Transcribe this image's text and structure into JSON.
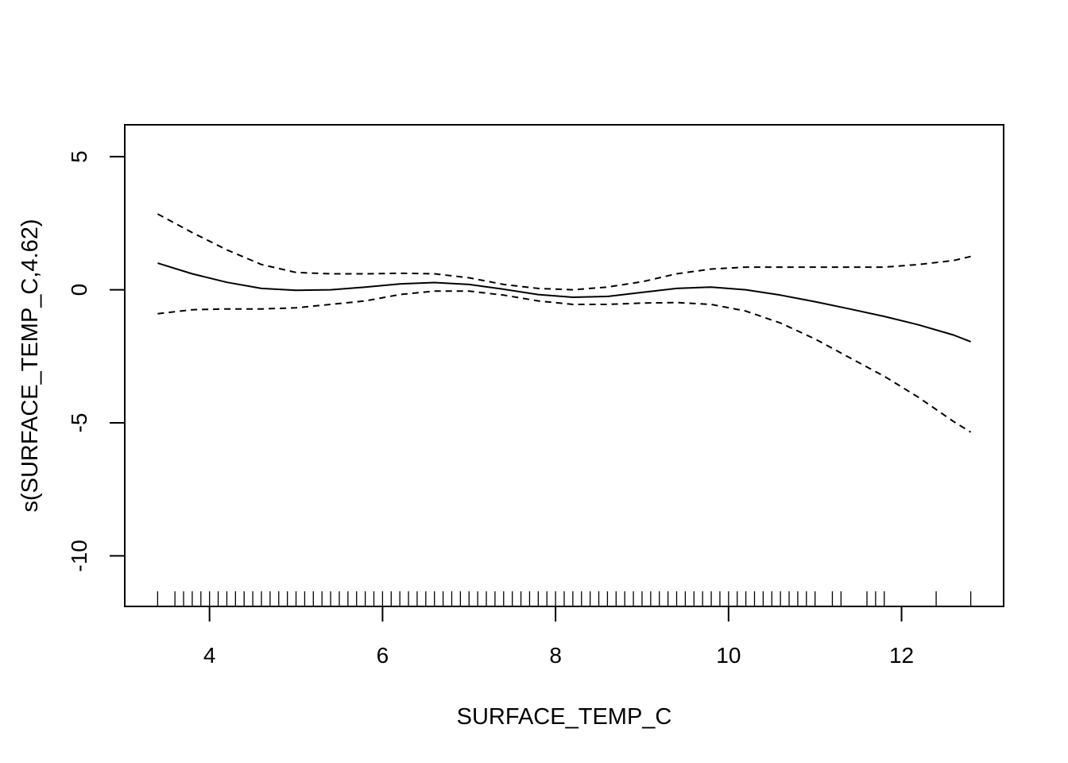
{
  "chart_data": {
    "type": "line",
    "title": "",
    "xlabel": "SURFACE_TEMP_C",
    "ylabel": "s(SURFACE_TEMP_C,4.62)",
    "xlim": [
      3.02,
      13.18
    ],
    "ylim": [
      -11.9,
      6.2
    ],
    "x_ticks": [
      4,
      6,
      8,
      10,
      12
    ],
    "x_tick_labels": [
      "4",
      "6",
      "8",
      "10",
      "12"
    ],
    "y_ticks": [
      5,
      0,
      -5,
      -10
    ],
    "y_tick_labels": [
      "5",
      "0",
      "-5",
      "-10"
    ],
    "grid": false,
    "legend": "none",
    "x": [
      3.4,
      3.8,
      4.2,
      4.6,
      5.0,
      5.4,
      5.8,
      6.2,
      6.6,
      7.0,
      7.4,
      7.8,
      8.2,
      8.6,
      9.0,
      9.4,
      9.8,
      10.2,
      10.6,
      11.0,
      11.4,
      11.8,
      12.2,
      12.6,
      12.8
    ],
    "series": [
      {
        "style": "solid",
        "values": [
          1.0,
          0.6,
          0.28,
          0.05,
          -0.02,
          0.0,
          0.1,
          0.22,
          0.27,
          0.2,
          0.02,
          -0.18,
          -0.28,
          -0.25,
          -0.1,
          0.05,
          0.1,
          0.0,
          -0.2,
          -0.45,
          -0.72,
          -1.0,
          -1.32,
          -1.7,
          -1.95
        ]
      },
      {
        "style": "dashed",
        "values": [
          2.85,
          2.15,
          1.5,
          0.95,
          0.65,
          0.6,
          0.6,
          0.62,
          0.6,
          0.45,
          0.2,
          0.05,
          0.0,
          0.1,
          0.3,
          0.6,
          0.78,
          0.85,
          0.85,
          0.85,
          0.85,
          0.85,
          0.95,
          1.1,
          1.25
        ]
      },
      {
        "style": "dashed",
        "values": [
          -0.9,
          -0.75,
          -0.72,
          -0.72,
          -0.68,
          -0.55,
          -0.42,
          -0.18,
          -0.05,
          -0.05,
          -0.2,
          -0.42,
          -0.55,
          -0.55,
          -0.5,
          -0.48,
          -0.55,
          -0.8,
          -1.25,
          -1.85,
          -2.55,
          -3.25,
          -4.05,
          -4.95,
          -5.35
        ]
      }
    ],
    "rug": [
      3.4,
      3.6,
      3.7,
      3.8,
      3.9,
      4.0,
      4.1,
      4.2,
      4.3,
      4.4,
      4.5,
      4.6,
      4.7,
      4.8,
      4.9,
      5.0,
      5.1,
      5.2,
      5.3,
      5.4,
      5.5,
      5.6,
      5.7,
      5.8,
      5.9,
      6.0,
      6.1,
      6.2,
      6.3,
      6.4,
      6.5,
      6.6,
      6.7,
      6.8,
      6.9,
      7.0,
      7.1,
      7.2,
      7.3,
      7.4,
      7.5,
      7.6,
      7.7,
      7.8,
      7.9,
      8.0,
      8.1,
      8.2,
      8.3,
      8.4,
      8.5,
      8.6,
      8.7,
      8.8,
      8.9,
      9.0,
      9.1,
      9.2,
      9.3,
      9.4,
      9.5,
      9.6,
      9.7,
      9.8,
      9.9,
      10.0,
      10.1,
      10.2,
      10.3,
      10.4,
      10.5,
      10.6,
      10.7,
      10.8,
      10.9,
      11.0,
      11.2,
      11.3,
      11.6,
      11.7,
      11.8,
      12.4,
      12.8
    ]
  }
}
